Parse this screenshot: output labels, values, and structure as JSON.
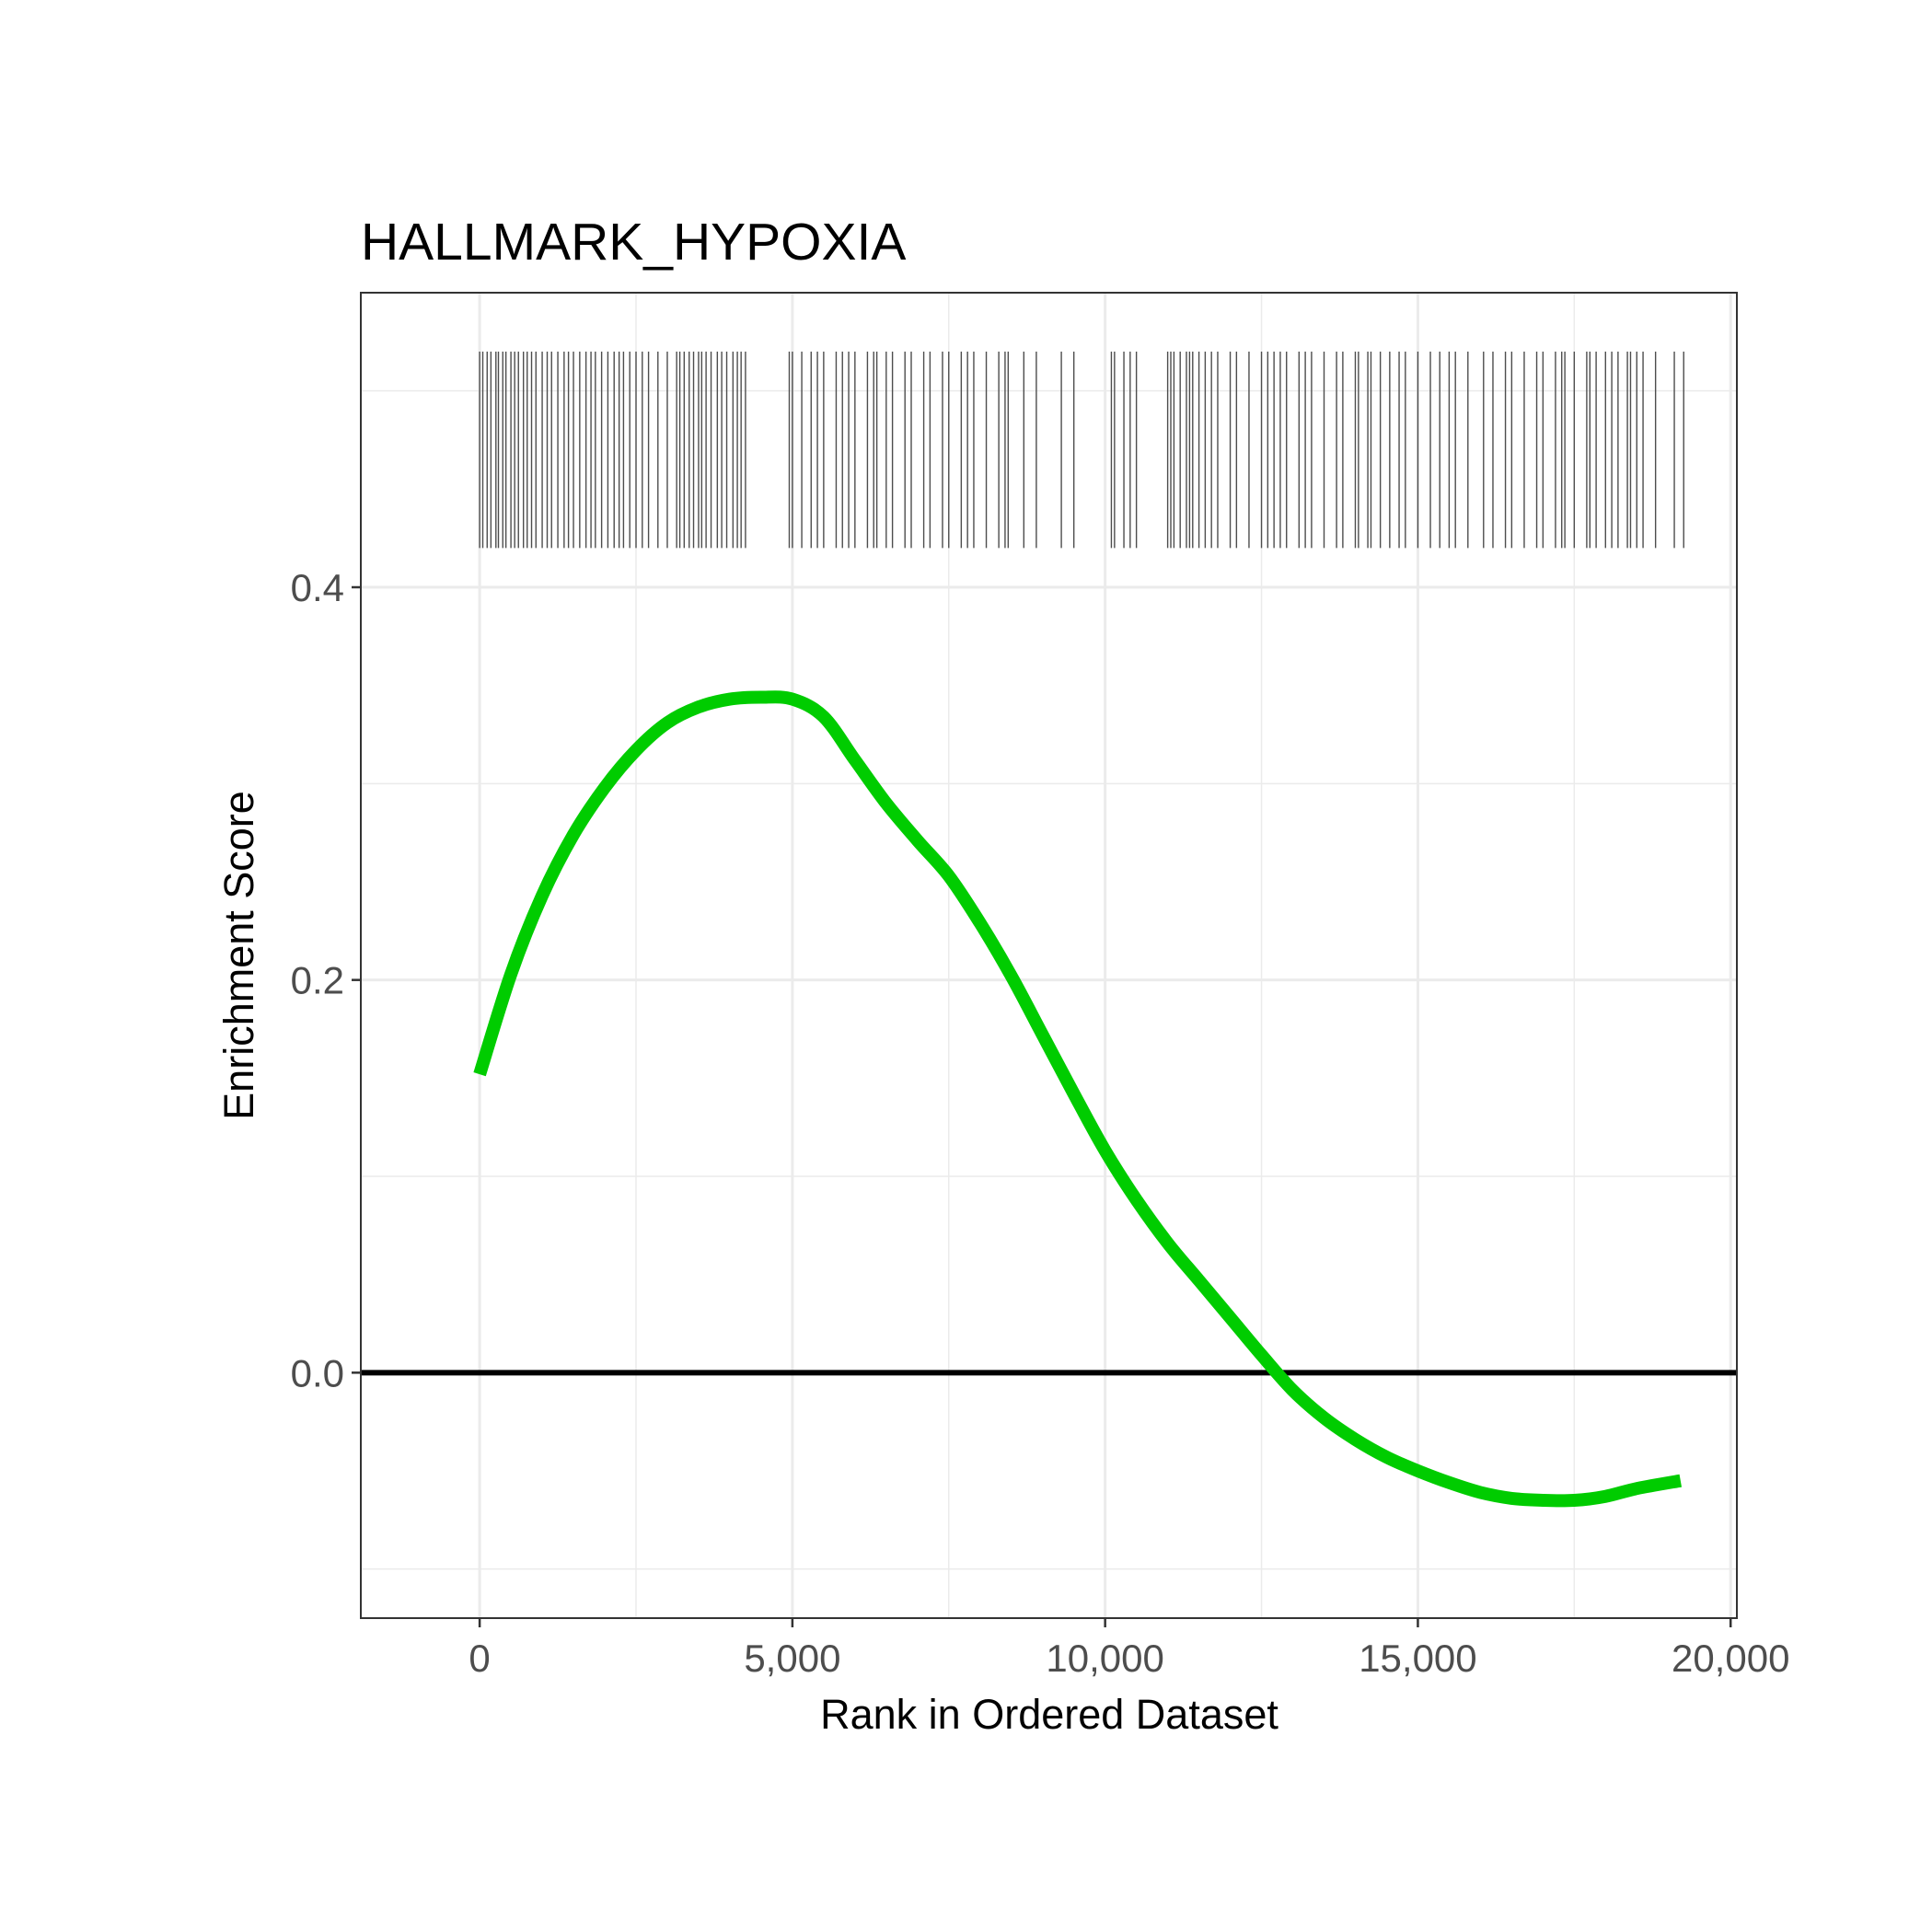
{
  "chart_data": {
    "type": "line",
    "title": "HALLMARK_HYPOXIA",
    "xlabel": "Rank in Ordered Dataset",
    "ylabel": "Enrichment Score",
    "xlim": [
      -1900,
      20100
    ],
    "ylim": [
      -0.125,
      0.55
    ],
    "x_ticks": [
      0,
      5000,
      10000,
      15000,
      20000
    ],
    "x_tick_labels": [
      "0",
      "5,000",
      "10,000",
      "15,000",
      "20,000"
    ],
    "x_minor_ticks": [
      2500,
      7500,
      12500,
      17500
    ],
    "y_ticks": [
      0.0,
      0.2,
      0.4
    ],
    "y_tick_labels": [
      "0.0",
      "0.2",
      "0.4"
    ],
    "y_minor_ticks": [
      -0.1,
      0.1,
      0.3,
      0.5
    ],
    "grid": true,
    "reference_line_y": 0,
    "colors": {
      "curve": "#00cc00",
      "reference_line": "#000000",
      "rug": "#4d4d4d",
      "grid": "#ebebeb",
      "panel_border": "#333333"
    },
    "series": [
      {
        "x": [
          0,
          500,
          1000,
          1500,
          2000,
          2500,
          3000,
          3500,
          4000,
          4500,
          5000,
          5500,
          6000,
          6500,
          7000,
          7500,
          8000,
          8500,
          9000,
          9500,
          10000,
          10500,
          11000,
          11500,
          12000,
          12500,
          13000,
          13500,
          14000,
          14500,
          15000,
          15500,
          16000,
          16500,
          17000,
          17500,
          18000,
          18500,
          19200
        ],
        "y": [
          0.152,
          0.203,
          0.243,
          0.274,
          0.298,
          0.317,
          0.331,
          0.339,
          0.343,
          0.344,
          0.343,
          0.334,
          0.312,
          0.29,
          0.271,
          0.253,
          0.229,
          0.202,
          0.172,
          0.142,
          0.113,
          0.088,
          0.066,
          0.047,
          0.028,
          0.009,
          -0.009,
          -0.023,
          -0.034,
          -0.043,
          -0.05,
          -0.056,
          -0.061,
          -0.064,
          -0.065,
          -0.065,
          -0.063,
          -0.059,
          -0.055
        ]
      }
    ],
    "rug": {
      "y_range": [
        0.42,
        0.52
      ],
      "positions": [
        0,
        50,
        120,
        180,
        260,
        300,
        370,
        420,
        500,
        560,
        620,
        700,
        760,
        830,
        900,
        1000,
        1080,
        1150,
        1250,
        1350,
        1420,
        1500,
        1600,
        1700,
        1780,
        1850,
        1950,
        2050,
        2150,
        2230,
        2300,
        2400,
        2500,
        2600,
        2700,
        2850,
        3000,
        3150,
        3200,
        3270,
        3350,
        3420,
        3500,
        3550,
        3620,
        3700,
        3800,
        3870,
        3950,
        4050,
        4120,
        4180,
        4250,
        4950,
        5000,
        5150,
        5300,
        5400,
        5500,
        5700,
        5800,
        5900,
        6000,
        6200,
        6300,
        6350,
        6500,
        6600,
        6800,
        6900,
        7100,
        7200,
        7400,
        7500,
        7700,
        7800,
        7900,
        8100,
        8300,
        8400,
        8450,
        8700,
        8900,
        9300,
        9500,
        10100,
        10150,
        10300,
        10400,
        10500,
        11000,
        11050,
        11100,
        11200,
        11300,
        11350,
        11400,
        11500,
        11600,
        11700,
        11800,
        12000,
        12100,
        12300,
        12500,
        12600,
        12700,
        12800,
        12900,
        13100,
        13200,
        13300,
        13500,
        13700,
        13800,
        14000,
        14050,
        14200,
        14250,
        14400,
        14550,
        14700,
        14800,
        15000,
        15200,
        15350,
        15500,
        15600,
        15800,
        16050,
        16200,
        16400,
        16500,
        16700,
        16900,
        17000,
        17200,
        17300,
        17350,
        17500,
        17700,
        17750,
        17850,
        18000,
        18100,
        18200,
        18350,
        18400,
        18500,
        18600,
        18800,
        19100,
        19250
      ]
    }
  }
}
